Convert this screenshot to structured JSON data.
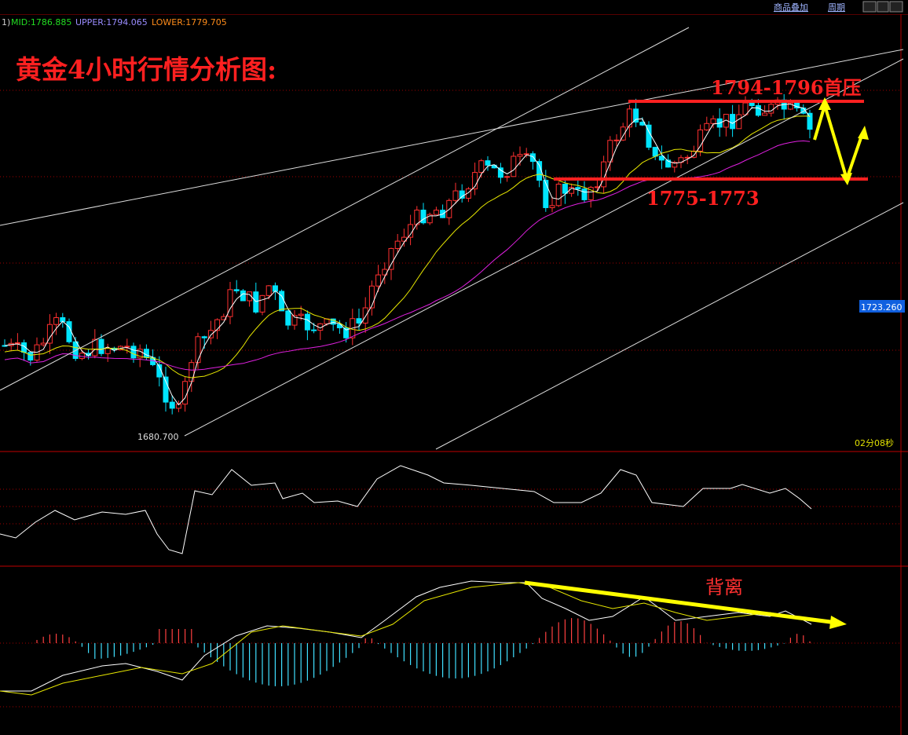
{
  "header": {
    "prefix": "1)",
    "mid": "MID:1786.885",
    "upper": "UPPER:1794.065",
    "lower": "LOWER:1779.705",
    "overlay_button": "商品叠加",
    "period_button": "周期"
  },
  "annotations": {
    "title": "黄金4小时行情分析图:",
    "resistance": "1794-1796首压",
    "support": "1775-1773",
    "price_tag": "1723.260",
    "low_label": "1680.700",
    "timer": "02分08秒",
    "divergence": "背离"
  }
}
